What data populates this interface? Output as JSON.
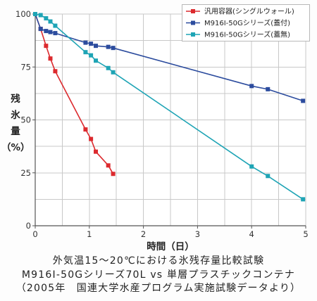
{
  "chart_data": {
    "type": "line",
    "xlabel": "時間（日）",
    "ylabel": "残氷量（%）",
    "xlim": [
      0,
      5
    ],
    "ylim": [
      0,
      100
    ],
    "xticks": [
      0,
      1,
      2,
      3,
      4,
      5
    ],
    "yticks": [
      0,
      25,
      50,
      75,
      100
    ],
    "grid": true,
    "legend_position": "top-right",
    "series": [
      {
        "name": "汎用容器(シングルウォール)",
        "color": "#dc2a2e",
        "marker": "square",
        "x": [
          0,
          0.1,
          0.2,
          0.28,
          0.37,
          0.93,
          1.03,
          1.12,
          1.35,
          1.44
        ],
        "y": [
          100,
          93,
          85,
          79,
          73,
          45.5,
          41,
          35,
          28.5,
          24.5
        ]
      },
      {
        "name": "M916I-50Gシリーズ(蓋付)",
        "color": "#2c4c9e",
        "marker": "square",
        "x": [
          0,
          0.1,
          0.2,
          0.28,
          0.37,
          0.93,
          1.03,
          1.12,
          1.35,
          1.44,
          4.0,
          4.3,
          4.95
        ],
        "y": [
          100,
          93,
          92,
          91.5,
          91,
          86.5,
          86,
          85,
          84.5,
          84,
          66,
          64.5,
          59
        ]
      },
      {
        "name": "M916I-50Gシリーズ(蓋無)",
        "color": "#1ea4b5",
        "marker": "square",
        "x": [
          0,
          0.1,
          0.2,
          0.28,
          0.37,
          0.93,
          1.03,
          1.12,
          1.35,
          1.44,
          4.0,
          4.3,
          4.95
        ],
        "y": [
          100,
          99.5,
          98,
          96.5,
          94.5,
          82,
          80.5,
          78,
          74.5,
          72.5,
          28,
          23.5,
          12.5
        ]
      }
    ]
  },
  "caption": {
    "line1": "外気温15～20℃における氷残存量比較試験",
    "line2": "M916I-50Gシリーズ70L vs 単層プラスチックコンテナ",
    "line3": "（2005年　国連大学水産プログラム実施試験データより）"
  }
}
